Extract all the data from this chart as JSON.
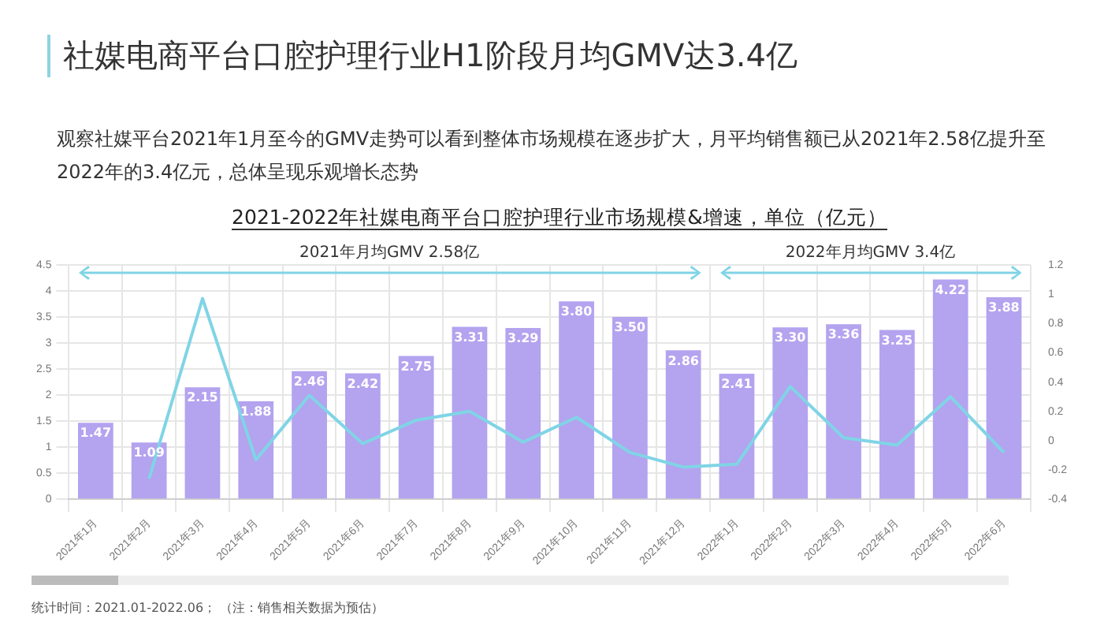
{
  "chart_data": {
    "type": "bar",
    "title": "社媒电商平台口腔护理行业H1阶段月均GMV达3.4亿",
    "subtitle": "观察社媒平台2021年1月至今的GMV走势可以看到整体市场规模在逐步扩大，月平均销售额已从2021年2.58亿提升至2022年的3.4亿元，总体呈现乐观增长态势",
    "annotations": [
      "2021-2022年社媒电商平台口腔护理行业市场规模&增速，单位（亿元）",
      "统计时间：2021.01-2022.06；",
      "（注：销售相关数据为预估）",
      "2021年月均GMV 2.58亿",
      "2022年月均GMV 3.4亿"
    ],
    "categories": [
      "2021年1月",
      "2021年2月",
      "2021年3月",
      "2021年4月",
      "2021年5月",
      "2021年6月",
      "2021年7月",
      "2021年8月",
      "2021年9月",
      "2021年10月",
      "2021年11月",
      "2021年12月",
      "2022年1月",
      "2022年2月",
      "2022年3月",
      "2022年4月",
      "2022年5月",
      "2022年6月"
    ],
    "series": [
      {
        "color": "#b4a3ef",
        "values": [
          1.47,
          1.09,
          2.15,
          1.88,
          2.46,
          2.42,
          2.75,
          3.31,
          3.29,
          3.8,
          3.5,
          2.86,
          2.41,
          3.3,
          3.36,
          3.25,
          4.22,
          3.88
        ],
        "value_labels": [
          "1.47",
          "1.09",
          "2.15",
          "1.88",
          "2.46",
          "2.42",
          "2.75",
          "3.31",
          "3.29",
          "3.80",
          "3.50",
          "2.86",
          "2.41",
          "3.30",
          "3.36",
          "3.25",
          "4.22",
          "3.88"
        ]
      },
      {
        "type": "line",
        "axis": "y2",
        "color": "#80d4e6",
        "values": [
          null,
          -0.26,
          0.97,
          -0.13,
          0.31,
          -0.02,
          0.14,
          0.2,
          -0.01,
          0.16,
          -0.08,
          -0.18,
          -0.16,
          0.37,
          0.02,
          -0.03,
          0.3,
          -0.08
        ]
      }
    ],
    "ylim": [
      0,
      4.5
    ],
    "yticks": [
      0,
      0.5,
      1,
      1.5,
      2,
      2.5,
      3,
      3.5,
      4,
      4.5
    ],
    "y2lim": [
      -0.4,
      1.2
    ],
    "y2ticks": [
      -0.4,
      -0.2,
      0,
      0.2,
      0.4,
      0.6,
      0.8,
      1,
      1.2
    ],
    "grid": true,
    "legend": false,
    "marker": "none",
    "line_style": "solid"
  }
}
